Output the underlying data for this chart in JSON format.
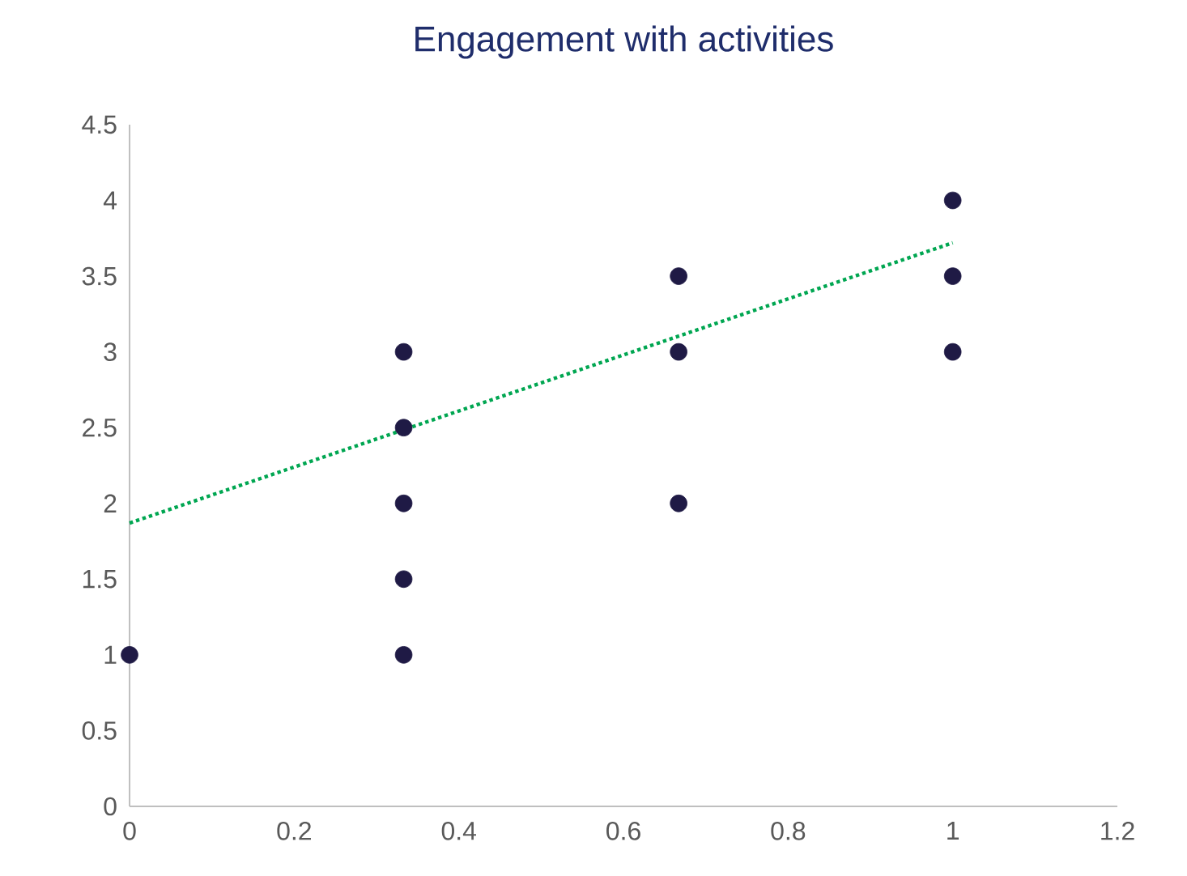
{
  "chart_data": {
    "type": "scatter",
    "title": "Engagement with activities",
    "xlim": [
      0,
      1.2
    ],
    "xticks": [
      0,
      0.2,
      0.4,
      0.6,
      0.8,
      1,
      1.2
    ],
    "ylim": [
      0,
      4.5
    ],
    "yticks": [
      0,
      0.5,
      1,
      1.5,
      2,
      2.5,
      3,
      3.5,
      4,
      4.5
    ],
    "marker": "circle",
    "series": [
      {
        "color": "#1f1a45",
        "x": [
          0,
          0.333,
          0.333,
          0.333,
          0.333,
          0.333,
          0.667,
          0.667,
          0.667,
          1,
          1,
          1
        ],
        "values": [
          1,
          1,
          1.5,
          2,
          2.5,
          3,
          2,
          3,
          3.5,
          3,
          3.5,
          4
        ]
      },
      {
        "type": "line",
        "color": "#00a651",
        "line_style": "dotted",
        "marker": "none",
        "x": [
          0,
          1
        ],
        "values": [
          1.87,
          3.72
        ]
      }
    ]
  }
}
